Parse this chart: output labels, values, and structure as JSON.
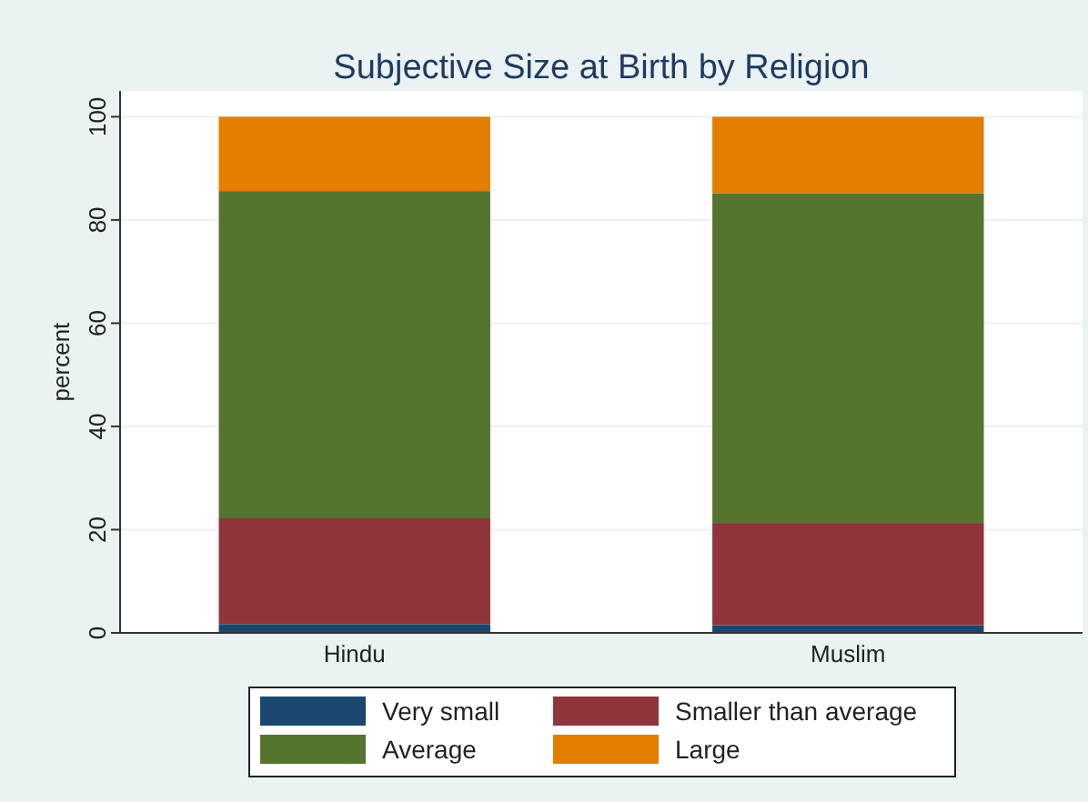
{
  "chart_data": {
    "type": "bar",
    "title": "Subjective Size at Birth by Religion",
    "ylabel": "percent",
    "categories": [
      "Hindu",
      "Muslim"
    ],
    "stacked": true,
    "series": [
      {
        "name": "Very small",
        "color": "#1a476f",
        "values": [
          1.7,
          1.5
        ]
      },
      {
        "name": "Smaller than average",
        "color": "#90353b",
        "values": [
          20.5,
          19.8
        ]
      },
      {
        "name": "Average",
        "color": "#55752f",
        "values": [
          63.4,
          63.9
        ]
      },
      {
        "name": "Large",
        "color": "#e37e00",
        "values": [
          14.4,
          14.8
        ]
      }
    ],
    "ylim": [
      0,
      105
    ],
    "yticks": [
      0,
      20,
      40,
      60,
      80,
      100
    ],
    "grid": "y",
    "legend": "bottom"
  }
}
